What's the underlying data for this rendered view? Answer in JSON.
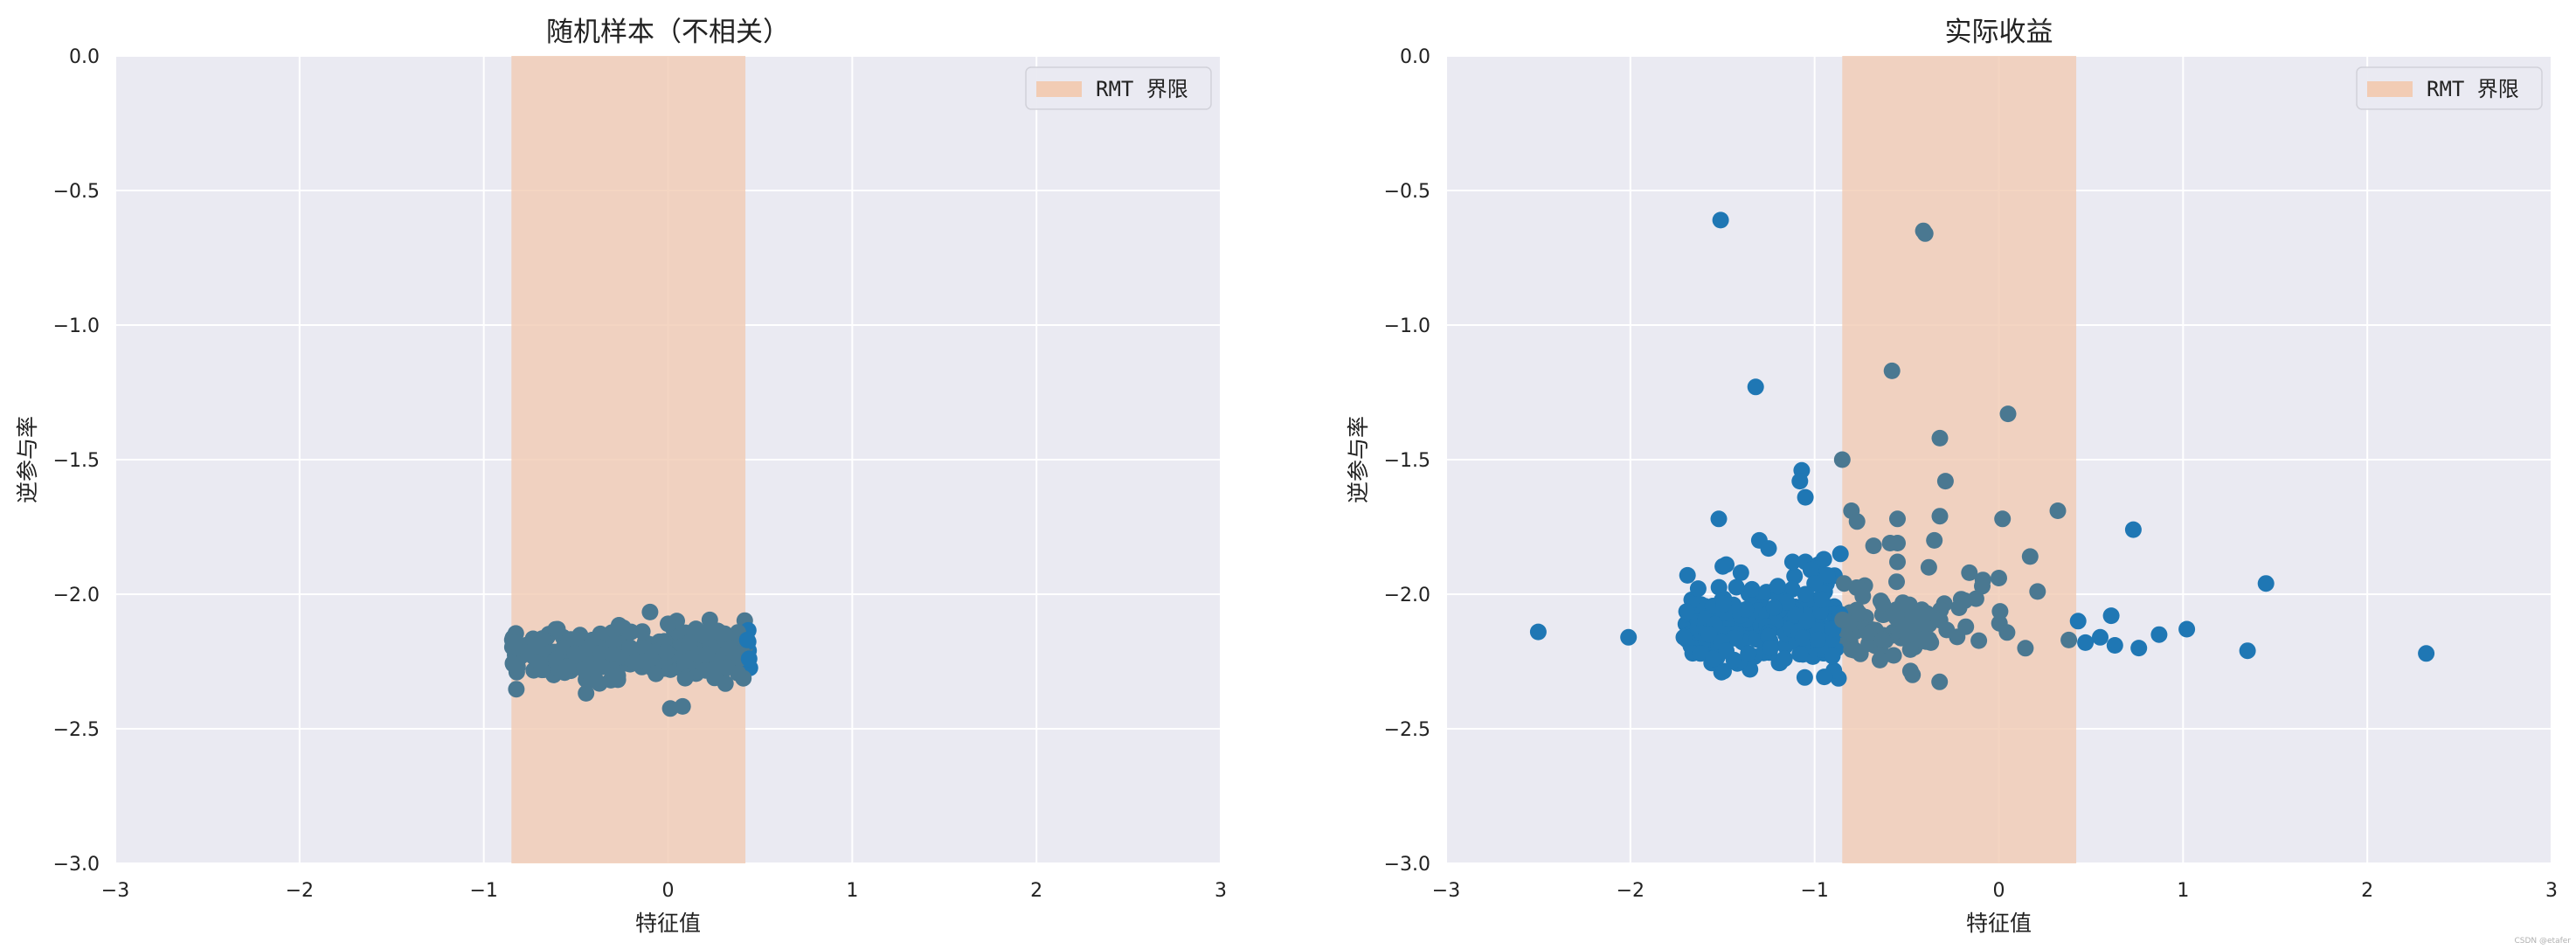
{
  "watermark": "CSDN @etafer",
  "colors": {
    "background": "#eaeaf2",
    "grid": "#ffffff",
    "band": "#f2ccb4",
    "point": "#1f77b4",
    "point_in_band": "#4a7891"
  },
  "chart_data": [
    {
      "type": "scatter",
      "title": "随机样本（不相关）",
      "xlabel": "特征值",
      "ylabel": "逆参与率",
      "xlim": [
        -3,
        3
      ],
      "ylim": [
        -3.0,
        0.0
      ],
      "xticks": [
        "−3",
        "−2",
        "−1",
        "0",
        "1",
        "2",
        "3"
      ],
      "yticks": [
        "0.0",
        "−0.5",
        "−1.0",
        "−1.5",
        "−2.0",
        "−2.5",
        "−3.0"
      ],
      "grid": true,
      "legend": {
        "position": "top-right",
        "label": "RMT 界限"
      },
      "band": [
        -0.85,
        0.42
      ],
      "points_note_generated": true,
      "cloud": {
        "x_range": [
          -0.85,
          0.45
        ],
        "y_center": -2.215,
        "y_spread": 0.05,
        "count": 260
      },
      "points": [
        [
          -0.84,
          -2.26
        ],
        [
          -0.83,
          -2.18
        ],
        [
          -0.6,
          -2.13
        ],
        [
          -0.55,
          -2.27
        ],
        [
          -0.0,
          -2.11
        ],
        [
          0.44,
          -2.24
        ],
        [
          0.43,
          -2.17
        ],
        [
          -0.2,
          -2.14
        ],
        [
          0.25,
          -2.28
        ],
        [
          -0.4,
          -2.28
        ]
      ]
    },
    {
      "type": "scatter",
      "title": "实际收益",
      "xlabel": "特征值",
      "ylabel": "逆参与率",
      "xlim": [
        -3,
        3
      ],
      "ylim": [
        -3.0,
        0.0
      ],
      "xticks": [
        "−3",
        "−2",
        "−1",
        "0",
        "1",
        "2",
        "3"
      ],
      "yticks": [
        "0.0",
        "−0.5",
        "−1.0",
        "−1.5",
        "−2.0",
        "−2.5",
        "−3.0"
      ],
      "grid": true,
      "legend": {
        "position": "top-right",
        "label": "RMT 界限"
      },
      "band": [
        -0.85,
        0.42
      ],
      "cloud": {
        "x_range": [
          -1.7,
          0.55
        ],
        "y_center": -2.12,
        "y_spread": 0.08,
        "count": 330
      },
      "points": [
        [
          -1.51,
          -0.61
        ],
        [
          -0.4,
          -0.66
        ],
        [
          -0.41,
          -0.65
        ],
        [
          -1.32,
          -1.23
        ],
        [
          -0.58,
          -1.17
        ],
        [
          0.05,
          -1.33
        ],
        [
          -0.32,
          -1.42
        ],
        [
          -0.85,
          -1.5
        ],
        [
          -1.07,
          -1.54
        ],
        [
          -1.08,
          -1.58
        ],
        [
          -0.29,
          -1.58
        ],
        [
          -1.05,
          -1.64
        ],
        [
          -0.8,
          -1.69
        ],
        [
          0.32,
          -1.69
        ],
        [
          -0.32,
          -1.71
        ],
        [
          -1.52,
          -1.72
        ],
        [
          -0.77,
          -1.73
        ],
        [
          0.02,
          -1.72
        ],
        [
          -0.55,
          -1.72
        ],
        [
          0.73,
          -1.76
        ],
        [
          -0.59,
          -1.81
        ],
        [
          -0.55,
          -1.81
        ],
        [
          -1.3,
          -1.8
        ],
        [
          -0.68,
          -1.82
        ],
        [
          -0.35,
          -1.8
        ],
        [
          -1.25,
          -1.83
        ],
        [
          0.17,
          -1.86
        ],
        [
          -0.86,
          -1.85
        ],
        [
          -0.55,
          -1.88
        ],
        [
          -1.12,
          -1.88
        ],
        [
          -0.38,
          -1.9
        ],
        [
          -1.05,
          -1.88
        ],
        [
          -1.48,
          -1.89
        ],
        [
          -0.16,
          -1.92
        ],
        [
          -1.69,
          -1.93
        ],
        [
          -1.4,
          -1.92
        ],
        [
          0.21,
          -1.99
        ],
        [
          -0.09,
          -1.97
        ],
        [
          1.45,
          -1.96
        ],
        [
          -0.84,
          -1.96
        ],
        [
          0.0,
          -1.94
        ],
        [
          0.61,
          -2.08
        ],
        [
          -2.5,
          -2.14
        ],
        [
          -2.01,
          -2.16
        ],
        [
          1.02,
          -2.13
        ],
        [
          0.87,
          -2.15
        ],
        [
          1.35,
          -2.21
        ],
        [
          0.76,
          -2.2
        ],
        [
          0.55,
          -2.16
        ],
        [
          2.32,
          -2.22
        ],
        [
          0.47,
          -2.18
        ],
        [
          0.38,
          -2.17
        ],
        [
          0.63,
          -2.19
        ],
        [
          0.43,
          -2.1
        ],
        [
          -1.62,
          -2.22
        ],
        [
          -1.71,
          -2.16
        ],
        [
          -1.55,
          -2.24
        ],
        [
          -1.48,
          -2.21
        ],
        [
          -1.36,
          -2.22
        ],
        [
          -1.24,
          -2.2
        ],
        [
          -0.98,
          -1.89
        ],
        [
          -1.02,
          -1.91
        ],
        [
          -0.95,
          -1.87
        ],
        [
          -1.0,
          -1.96
        ],
        [
          -0.93,
          -1.93
        ],
        [
          -1.05,
          -2.0
        ],
        [
          -0.96,
          -2.02
        ],
        [
          -1.15,
          -2.03
        ],
        [
          -1.2,
          -1.97
        ],
        [
          -1.22,
          -2.05
        ]
      ]
    }
  ]
}
